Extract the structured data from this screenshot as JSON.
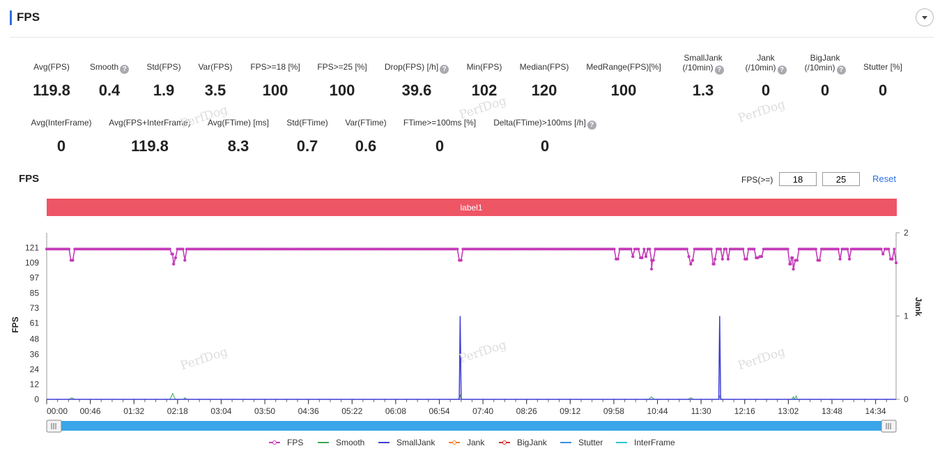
{
  "header": {
    "title": "FPS"
  },
  "stats_row1": [
    {
      "label": "Avg(FPS)",
      "value": "119.8",
      "help": false
    },
    {
      "label": "Smooth",
      "value": "0.4",
      "help": true
    },
    {
      "label": "Std(FPS)",
      "value": "1.9",
      "help": false
    },
    {
      "label": "Var(FPS)",
      "value": "3.5",
      "help": false
    },
    {
      "label": "FPS>=18 [%]",
      "value": "100",
      "help": false
    },
    {
      "label": "FPS>=25 [%]",
      "value": "100",
      "help": false
    },
    {
      "label": "Drop(FPS) [/h]",
      "value": "39.6",
      "help": true
    },
    {
      "label": "Min(FPS)",
      "value": "102",
      "help": false
    },
    {
      "label": "Median(FPS)",
      "value": "120",
      "help": false
    },
    {
      "label": "MedRange(FPS)[%]",
      "value": "100",
      "help": false
    },
    {
      "label": "SmallJank\n(/10min)",
      "value": "1.3",
      "help": true
    },
    {
      "label": "Jank\n(/10min)",
      "value": "0",
      "help": true
    },
    {
      "label": "BigJank\n(/10min)",
      "value": "0",
      "help": true
    },
    {
      "label": "Stutter [%]",
      "value": "0",
      "help": false
    }
  ],
  "stats_row2": [
    {
      "label": "Avg(InterFrame)",
      "value": "0",
      "help": false
    },
    {
      "label": "Avg(FPS+InterFrame)",
      "value": "119.8",
      "help": false
    },
    {
      "label": "Avg(FTime) [ms]",
      "value": "8.3",
      "help": false
    },
    {
      "label": "Std(FTime)",
      "value": "0.7",
      "help": false
    },
    {
      "label": "Var(FTime)",
      "value": "0.6",
      "help": false
    },
    {
      "label": "FTime>=100ms [%]",
      "value": "0",
      "help": false
    },
    {
      "label": "Delta(FTime)>100ms [/h]",
      "value": "0",
      "help": true
    }
  ],
  "watermark": "PerfDog",
  "threshold": {
    "label": "FPS(>=)",
    "value1": "18",
    "value2": "25",
    "reset_label": "Reset"
  },
  "chart_data": {
    "type": "line",
    "title": "FPS",
    "label_band": "label1",
    "ylabel": "FPS",
    "y2label": "Jank",
    "y_ticks": [
      0,
      12,
      24,
      36,
      48,
      61,
      73,
      85,
      97,
      109,
      121
    ],
    "y2_ticks": [
      0,
      1,
      2
    ],
    "y2lim": [
      0,
      2
    ],
    "ylim": [
      0,
      133
    ],
    "x_ticks": [
      "00:00",
      "00:46",
      "01:32",
      "02:18",
      "03:04",
      "03:50",
      "04:36",
      "05:22",
      "06:08",
      "06:54",
      "07:40",
      "08:26",
      "09:12",
      "09:58",
      "10:44",
      "11:30",
      "12:16",
      "13:02",
      "13:48",
      "14:34"
    ],
    "x_range_seconds": [
      0,
      910
    ],
    "fps_baseline": 120,
    "fps_dips": [
      [
        27,
        111
      ],
      [
        135,
        116
      ],
      [
        136,
        108
      ],
      [
        138,
        113
      ],
      [
        148,
        111
      ],
      [
        443,
        111
      ],
      [
        611,
        112
      ],
      [
        628,
        114
      ],
      [
        637,
        113
      ],
      [
        642,
        114
      ],
      [
        648,
        104
      ],
      [
        649,
        111
      ],
      [
        688,
        114
      ],
      [
        690,
        108
      ],
      [
        692,
        111
      ],
      [
        715,
        108
      ],
      [
        716,
        112
      ],
      [
        724,
        112
      ],
      [
        730,
        112
      ],
      [
        749,
        112
      ],
      [
        761,
        113
      ],
      [
        765,
        114
      ],
      [
        797,
        108
      ],
      [
        799,
        113
      ],
      [
        800,
        104
      ],
      [
        803,
        111
      ],
      [
        827,
        111
      ],
      [
        850,
        112
      ],
      [
        860,
        112
      ],
      [
        896,
        116
      ],
      [
        905,
        112
      ],
      [
        910,
        109
      ]
    ],
    "smalljank_spikes": [
      [
        443,
        1
      ],
      [
        721,
        1
      ]
    ],
    "smooth_spikes": [
      [
        27,
        0.02
      ],
      [
        135,
        0.07
      ],
      [
        136,
        0.04
      ],
      [
        148,
        0.02
      ],
      [
        443,
        0.05
      ],
      [
        648,
        0.03
      ],
      [
        690,
        0.02
      ],
      [
        721,
        0.04
      ],
      [
        800,
        0.03
      ],
      [
        803,
        0.04
      ]
    ],
    "legend": [
      {
        "name": "FPS",
        "color": "#c43bb8",
        "marker": true
      },
      {
        "name": "Smooth",
        "color": "#3aa655",
        "marker": false
      },
      {
        "name": "SmallJank",
        "color": "#3d3dd6",
        "marker": false
      },
      {
        "name": "Jank",
        "color": "#f07f2a",
        "marker": true
      },
      {
        "name": "BigJank",
        "color": "#d62b2b",
        "marker": true
      },
      {
        "name": "Stutter",
        "color": "#3c8ce0",
        "marker": false
      },
      {
        "name": "InterFrame",
        "color": "#2bc6cf",
        "marker": false
      }
    ],
    "colors": {
      "band": "#ee5565",
      "slider": "#3aa5e8",
      "axis": "#666"
    }
  }
}
